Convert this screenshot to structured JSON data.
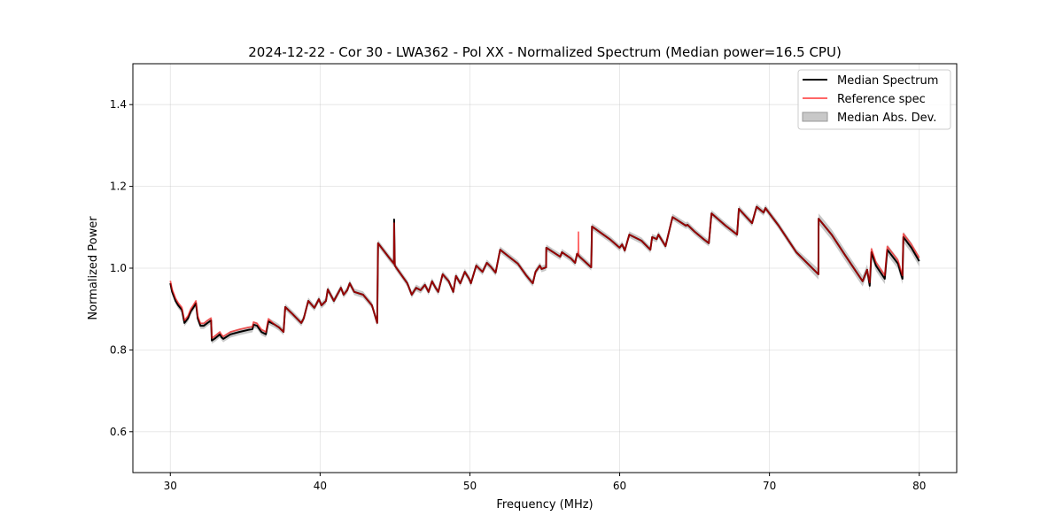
{
  "chart_data": {
    "type": "line",
    "title": "2024-12-22 - Cor 30 - LWA362 - Pol XX - Normalized Spectrum (Median power=16.5 CPU)",
    "xlabel": "Frequency (MHz)",
    "ylabel": "Normalized Power",
    "xlim": [
      27.5,
      82.5
    ],
    "ylim": [
      0.5,
      1.5
    ],
    "xticks": [
      30,
      40,
      50,
      60,
      70,
      80
    ],
    "yticks": [
      0.6,
      0.8,
      1.0,
      1.2,
      1.4
    ],
    "ytick_labels": [
      "0.6",
      "0.8",
      "1.0",
      "1.2",
      "1.4"
    ],
    "grid": true,
    "legend_position": "top-right",
    "legend": [
      "Median Spectrum",
      "Reference spec",
      "Median Abs. Dev."
    ],
    "colors": {
      "median": "#000000",
      "reference": "#ff0000",
      "mad": "#b0b0b0"
    },
    "median": {
      "x": [
        30.0,
        30.12,
        30.24,
        30.35,
        30.53,
        30.77,
        30.94,
        31.18,
        31.36,
        31.53,
        31.71,
        31.83,
        32.01,
        32.24,
        32.48,
        32.72,
        32.77,
        33.01,
        33.31,
        33.42,
        33.54,
        34.01,
        34.6,
        35.19,
        35.49,
        35.55,
        35.79,
        36.08,
        36.38,
        36.55,
        36.97,
        37.26,
        37.56,
        37.67,
        38.15,
        38.74,
        38.91,
        39.21,
        39.62,
        39.92,
        40.09,
        40.39,
        40.51,
        40.92,
        41.39,
        41.57,
        41.81,
        41.98,
        42.28,
        42.87,
        43.46,
        43.81,
        43.87,
        44.64,
        44.93,
        44.94,
        44.99,
        45.53,
        45.82,
        46.12,
        46.41,
        46.71,
        47.0,
        47.24,
        47.47,
        47.71,
        47.89,
        48.18,
        48.59,
        48.89,
        49.07,
        49.36,
        49.66,
        49.95,
        50.07,
        50.42,
        50.84,
        51.13,
        51.43,
        51.72,
        52.02,
        52.61,
        53.2,
        53.79,
        54.08,
        54.2,
        54.38,
        54.67,
        54.79,
        55.09,
        55.1,
        55.86,
        56.03,
        56.15,
        56.74,
        57.03,
        57.15,
        57.33,
        58.1,
        58.15,
        59.4,
        59.99,
        60.16,
        60.34,
        60.64,
        61.46,
        62.05,
        62.17,
        62.47,
        62.59,
        63.06,
        63.53,
        64.42,
        64.53,
        65.01,
        65.6,
        65.95,
        66.13,
        67.07,
        67.84,
        67.96,
        68.84,
        69.14,
        69.61,
        69.73,
        70.61,
        71.79,
        73.27,
        73.28,
        74.15,
        75.04,
        76.22,
        76.52,
        76.69,
        76.81,
        77.11,
        77.7,
        77.87,
        78.58,
        78.88,
        78.94,
        79.47,
        80.0
      ],
      "y": [
        0.963,
        0.942,
        0.931,
        0.92,
        0.909,
        0.898,
        0.866,
        0.877,
        0.894,
        0.903,
        0.914,
        0.877,
        0.859,
        0.859,
        0.866,
        0.872,
        0.823,
        0.829,
        0.838,
        0.831,
        0.827,
        0.838,
        0.844,
        0.849,
        0.851,
        0.862,
        0.859,
        0.844,
        0.838,
        0.87,
        0.862,
        0.855,
        0.844,
        0.905,
        0.888,
        0.866,
        0.877,
        0.92,
        0.903,
        0.924,
        0.909,
        0.92,
        0.948,
        0.92,
        0.952,
        0.935,
        0.946,
        0.963,
        0.942,
        0.935,
        0.909,
        0.866,
        1.061,
        1.024,
        1.011,
        1.119,
        1.006,
        0.978,
        0.963,
        0.935,
        0.952,
        0.946,
        0.959,
        0.942,
        0.968,
        0.952,
        0.942,
        0.985,
        0.968,
        0.942,
        0.981,
        0.963,
        0.991,
        0.974,
        0.963,
        1.006,
        0.991,
        1.013,
        1.002,
        0.989,
        1.045,
        1.028,
        1.011,
        0.981,
        0.968,
        0.963,
        0.991,
        1.006,
        0.998,
        1.002,
        1.05,
        1.032,
        1.028,
        1.039,
        1.024,
        1.013,
        1.035,
        1.028,
        1.002,
        1.102,
        1.069,
        1.05,
        1.058,
        1.043,
        1.082,
        1.067,
        1.045,
        1.076,
        1.071,
        1.082,
        1.054,
        1.125,
        1.104,
        1.106,
        1.089,
        1.071,
        1.061,
        1.134,
        1.104,
        1.082,
        1.145,
        1.11,
        1.15,
        1.136,
        1.147,
        1.104,
        1.039,
        0.985,
        1.121,
        1.082,
        1.032,
        0.968,
        0.996,
        0.957,
        1.039,
        1.006,
        0.974,
        1.045,
        1.011,
        0.974,
        1.076,
        1.05,
        1.017
      ]
    },
    "reference": {
      "x": [
        30.0,
        30.12,
        30.24,
        30.35,
        30.53,
        30.77,
        30.94,
        31.18,
        31.36,
        31.53,
        31.71,
        31.83,
        32.01,
        32.24,
        32.48,
        32.72,
        32.77,
        33.01,
        33.31,
        33.42,
        33.54,
        34.01,
        34.6,
        35.19,
        35.49,
        35.55,
        35.79,
        36.08,
        36.38,
        36.55,
        36.97,
        37.26,
        37.56,
        37.67,
        38.15,
        38.74,
        38.91,
        39.21,
        39.62,
        39.92,
        40.09,
        40.39,
        40.51,
        40.92,
        41.39,
        41.57,
        41.81,
        41.98,
        42.28,
        42.87,
        43.46,
        43.81,
        43.87,
        44.64,
        44.93,
        44.94,
        44.99,
        45.53,
        45.82,
        46.12,
        46.41,
        46.71,
        47.0,
        47.24,
        47.47,
        47.71,
        47.89,
        48.18,
        48.59,
        48.89,
        49.07,
        49.36,
        49.66,
        49.95,
        50.07,
        50.42,
        50.84,
        51.13,
        51.43,
        51.72,
        52.02,
        52.61,
        53.2,
        53.79,
        54.08,
        54.2,
        54.38,
        54.67,
        54.79,
        55.09,
        55.1,
        55.86,
        56.03,
        56.15,
        56.74,
        57.03,
        57.15,
        57.24,
        57.25,
        57.26,
        57.33,
        58.1,
        58.15,
        59.4,
        59.99,
        60.16,
        60.34,
        60.64,
        61.46,
        62.05,
        62.17,
        62.47,
        62.59,
        63.06,
        63.53,
        64.42,
        64.53,
        65.01,
        65.6,
        65.95,
        66.13,
        67.07,
        67.84,
        67.96,
        68.84,
        69.14,
        69.61,
        69.73,
        70.61,
        71.79,
        73.27,
        73.28,
        74.15,
        75.04,
        76.22,
        76.52,
        76.69,
        76.81,
        77.11,
        77.7,
        77.87,
        78.58,
        78.88,
        78.94,
        79.47,
        80.0
      ],
      "y": [
        0.969,
        0.948,
        0.937,
        0.926,
        0.915,
        0.904,
        0.872,
        0.883,
        0.9,
        0.909,
        0.92,
        0.883,
        0.865,
        0.865,
        0.872,
        0.878,
        0.829,
        0.835,
        0.844,
        0.837,
        0.833,
        0.844,
        0.85,
        0.855,
        0.857,
        0.868,
        0.865,
        0.85,
        0.844,
        0.876,
        0.862,
        0.855,
        0.844,
        0.905,
        0.888,
        0.866,
        0.877,
        0.92,
        0.903,
        0.924,
        0.909,
        0.92,
        0.948,
        0.92,
        0.952,
        0.935,
        0.946,
        0.963,
        0.942,
        0.935,
        0.909,
        0.866,
        1.061,
        1.024,
        1.011,
        1.11,
        1.006,
        0.978,
        0.963,
        0.935,
        0.952,
        0.946,
        0.959,
        0.942,
        0.968,
        0.952,
        0.942,
        0.985,
        0.968,
        0.942,
        0.981,
        0.963,
        0.991,
        0.974,
        0.963,
        1.006,
        0.991,
        1.013,
        1.002,
        0.989,
        1.045,
        1.028,
        1.011,
        0.981,
        0.968,
        0.963,
        0.991,
        1.006,
        0.998,
        1.002,
        1.05,
        1.032,
        1.028,
        1.039,
        1.024,
        1.013,
        1.035,
        1.03,
        1.088,
        1.03,
        1.028,
        1.002,
        1.102,
        1.069,
        1.05,
        1.058,
        1.043,
        1.082,
        1.067,
        1.045,
        1.076,
        1.071,
        1.082,
        1.054,
        1.125,
        1.104,
        1.106,
        1.089,
        1.071,
        1.061,
        1.134,
        1.104,
        1.082,
        1.145,
        1.11,
        1.15,
        1.136,
        1.147,
        1.104,
        1.039,
        0.985,
        1.121,
        1.082,
        1.032,
        0.968,
        0.996,
        0.965,
        1.047,
        1.014,
        0.982,
        1.053,
        1.019,
        0.982,
        1.084,
        1.058,
        1.025
      ]
    },
    "mad_segments": [
      {
        "from": 30,
        "to": 73.2,
        "value": 0.008
      },
      {
        "from": 73.2,
        "to": 80,
        "value": 0.013
      }
    ]
  }
}
